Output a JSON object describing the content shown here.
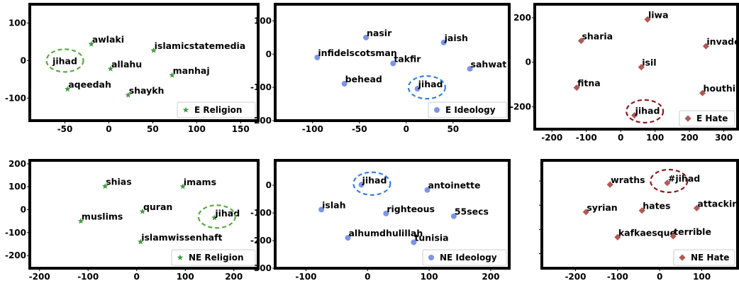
{
  "colors": {
    "religion": "#3f9a3f",
    "ideology": "#7e95e6",
    "hate": "#b05a56",
    "circle_religion": "#5aa844",
    "circle_ideology": "#3a7fe0",
    "circle_hate": "#8e1c1c"
  },
  "chart_data": [
    {
      "type": "scatter",
      "legend": "E Religion",
      "marker": "star",
      "color_key": "religion",
      "xlim": [
        -90,
        170
      ],
      "ylim": [
        -160,
        150
      ],
      "xticks": [
        -50,
        0,
        50,
        100,
        150
      ],
      "yticks": [
        -100,
        0,
        100
      ],
      "yticks_shown": true,
      "points": [
        {
          "label": "awlaki",
          "x": -20,
          "y": 44
        },
        {
          "label": "islamicstatemedia",
          "x": 51,
          "y": 27
        },
        {
          "label": "allahu",
          "x": 2,
          "y": -22
        },
        {
          "label": "manhaj",
          "x": 72,
          "y": -39
        },
        {
          "label": "aqeedah",
          "x": -47,
          "y": -76
        },
        {
          "label": "shaykh",
          "x": 22,
          "y": -92
        }
      ],
      "highlight": {
        "label": "jihad",
        "x": -50,
        "y": 0,
        "circle_key": "circle_religion"
      }
    },
    {
      "type": "scatter",
      "legend": "E Ideology",
      "marker": "circle",
      "color_key": "ideology",
      "xlim": [
        -140,
        110
      ],
      "ylim": [
        -200,
        150
      ],
      "xticks": [
        -100,
        -50,
        0,
        50
      ],
      "yticks": [
        -200,
        -100,
        0,
        100
      ],
      "yticks_shown": true,
      "points": [
        {
          "label": "nasir",
          "x": -43,
          "y": 50
        },
        {
          "label": "jaish",
          "x": 40,
          "y": 35
        },
        {
          "label": "infidelscotsman",
          "x": -95,
          "y": -10
        },
        {
          "label": "takfir",
          "x": -14,
          "y": -28
        },
        {
          "label": "sahwat",
          "x": 68,
          "y": -44
        },
        {
          "label": "behead",
          "x": -66,
          "y": -89
        },
        {
          "label": "jihad",
          "x": 12,
          "y": -104
        }
      ],
      "highlight": {
        "label": "jihad",
        "x": 22,
        "y": -100,
        "circle_key": "circle_ideology"
      }
    },
    {
      "type": "scatter",
      "legend": "E Hate",
      "marker": "diamond",
      "color_key": "hate",
      "xlim": [
        -250,
        340
      ],
      "ylim": [
        -300,
        260
      ],
      "xticks": [
        -200,
        -100,
        0,
        100,
        200,
        300
      ],
      "yticks": [
        -200,
        0,
        200
      ],
      "yticks_shown": true,
      "points": [
        {
          "label": "liwa",
          "x": 78,
          "y": 192
        },
        {
          "label": "sharia",
          "x": -115,
          "y": 96
        },
        {
          "label": "invade",
          "x": 248,
          "y": 72
        },
        {
          "label": "isil",
          "x": 60,
          "y": -22
        },
        {
          "label": "fitna",
          "x": -128,
          "y": -114
        },
        {
          "label": "houthi",
          "x": 238,
          "y": -138
        },
        {
          "label": "jihad",
          "x": 40,
          "y": -238
        }
      ],
      "highlight": {
        "label": "jihad",
        "x": 70,
        "y": -220,
        "circle_key": "circle_hate"
      }
    },
    {
      "type": "scatter",
      "legend": "NE Religion",
      "marker": "star",
      "color_key": "religion",
      "xlim": [
        -220,
        250
      ],
      "ylim": [
        -255,
        215
      ],
      "xticks": [
        -200,
        -100,
        0,
        100,
        200
      ],
      "yticks": [
        -200,
        -100,
        0,
        100,
        200
      ],
      "yticks_shown": true,
      "points": [
        {
          "label": "shias",
          "x": -65,
          "y": 102
        },
        {
          "label": "imams",
          "x": 95,
          "y": 101
        },
        {
          "label": "quran",
          "x": 12,
          "y": -8
        },
        {
          "label": "muslims",
          "x": -115,
          "y": -50
        },
        {
          "label": "jihad",
          "x": 160,
          "y": -35
        },
        {
          "label": "islamwissenhaft",
          "x": 8,
          "y": -140
        }
      ],
      "highlight": {
        "label": "jihad",
        "x": 165,
        "y": -30,
        "circle_key": "circle_religion"
      }
    },
    {
      "type": "scatter",
      "legend": "NE Ideology",
      "marker": "circle",
      "color_key": "ideology",
      "xlim": [
        -150,
        230
      ],
      "ylim": [
        -300,
        90
      ],
      "xticks": [
        -100,
        0,
        100,
        200
      ],
      "yticks": [
        -300,
        -200,
        -100,
        0
      ],
      "yticks_shown": true,
      "points": [
        {
          "label": "jihad",
          "x": -10,
          "y": 2
        },
        {
          "label": "antoinette",
          "x": 97,
          "y": -17
        },
        {
          "label": "islah",
          "x": -75,
          "y": -88
        },
        {
          "label": "righteous",
          "x": 30,
          "y": -102
        },
        {
          "label": "55secs",
          "x": 140,
          "y": -112
        },
        {
          "label": "alhumdhulillah",
          "x": -32,
          "y": -190
        },
        {
          "label": "tunisia",
          "x": 75,
          "y": -206
        }
      ],
      "highlight": {
        "label": "jihad",
        "x": 7,
        "y": 6,
        "circle_key": "circle_ideology"
      }
    },
    {
      "type": "scatter",
      "legend": "NE Hate",
      "marker": "diamond",
      "color_key": "hate",
      "xlim": [
        -280,
        185
      ],
      "ylim": [
        -260,
        185
      ],
      "xticks": [
        -200,
        -100,
        0,
        100
      ],
      "yticks": [
        -200,
        -100,
        0,
        100
      ],
      "yticks_shown": false,
      "points": [
        {
          "label": "wraths",
          "x": -118,
          "y": 85
        },
        {
          "label": "#jihad",
          "x": 18,
          "y": 92
        },
        {
          "label": "syrian",
          "x": -175,
          "y": -28
        },
        {
          "label": "hates",
          "x": -42,
          "y": -22
        },
        {
          "label": "attacking",
          "x": 88,
          "y": -12
        },
        {
          "label": "kafkaesque",
          "x": -100,
          "y": -132
        },
        {
          "label": "terrible",
          "x": 32,
          "y": -128
        }
      ],
      "highlight": {
        "label": "#jihad",
        "x": 22,
        "y": 100,
        "circle_key": "circle_hate"
      }
    }
  ]
}
